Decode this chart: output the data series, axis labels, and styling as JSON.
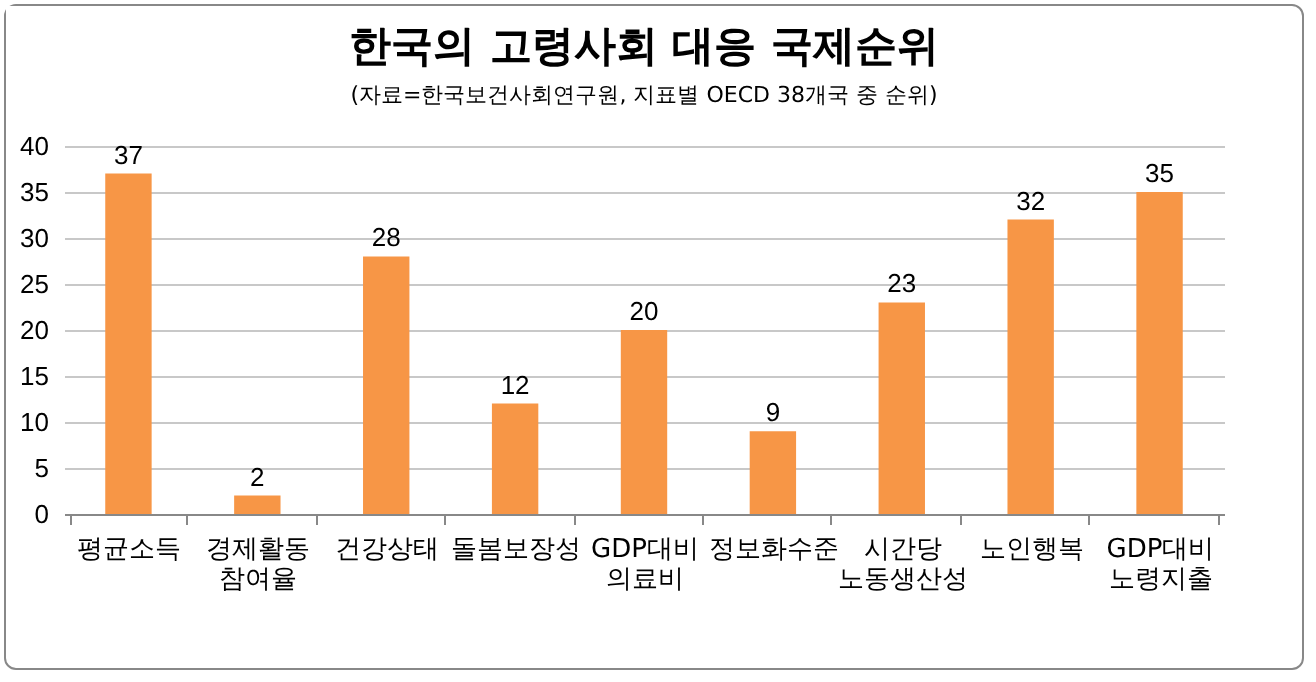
{
  "chart_data": {
    "type": "bar",
    "title": "한국의 고령사회 대응 국제순위",
    "subtitle": "(자료=한국보건사회연구원, 지표별 OECD 38개국 중 순위)",
    "categories": [
      "평균소득",
      "경제활동 참여율",
      "건강상태",
      "돌봄보장성",
      "GDP대비 의료비",
      "정보화수준",
      "시간당 노동생산성",
      "노인행복",
      "GDP대비 노령지출"
    ],
    "values": [
      37,
      2,
      28,
      12,
      20,
      9,
      23,
      32,
      35
    ],
    "color": "#f79646",
    "ylim": [
      0,
      40
    ],
    "yticks": [
      0,
      5,
      10,
      15,
      20,
      25,
      30,
      35,
      40
    ],
    "grid": "y",
    "data_labels": true
  }
}
